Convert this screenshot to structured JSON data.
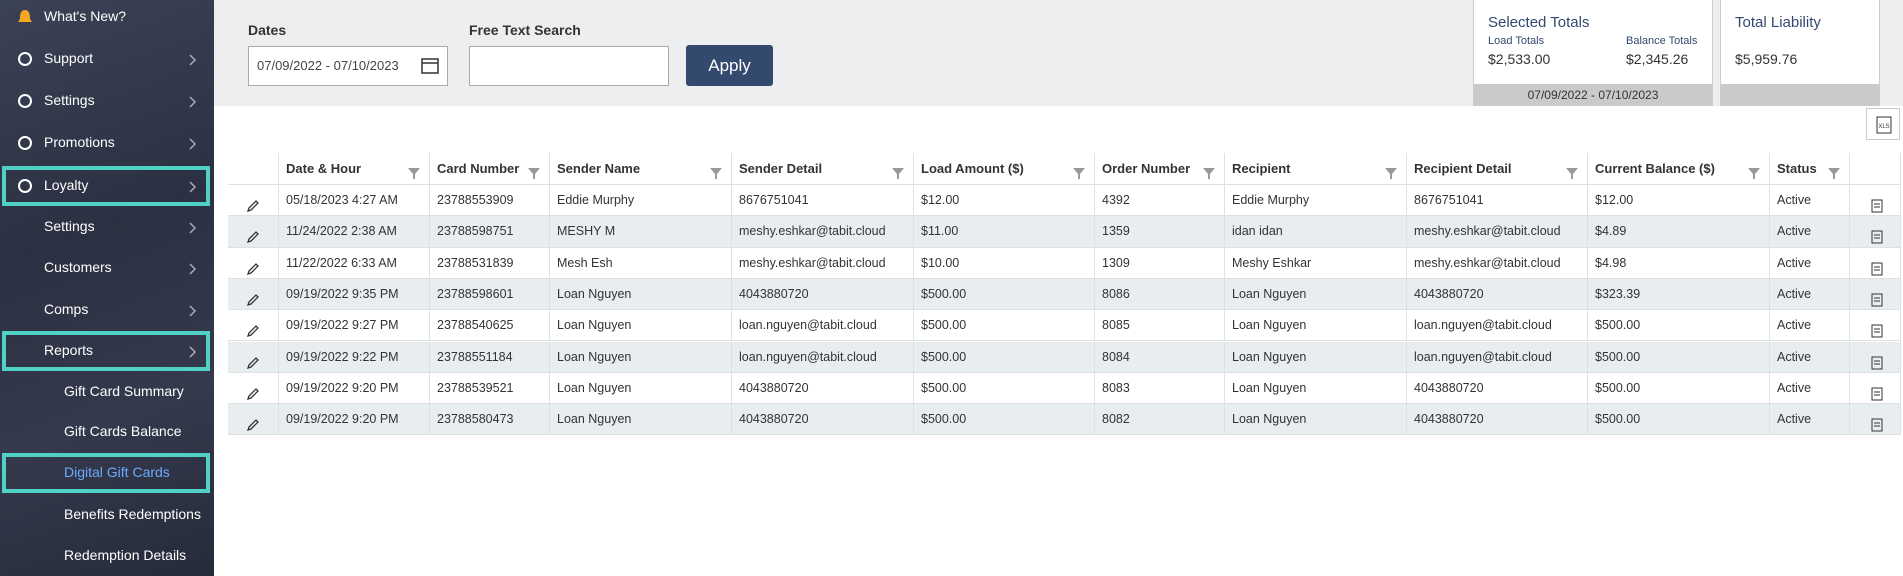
{
  "sidebar": {
    "items": [
      "What's New?",
      "Support",
      "Settings",
      "Promotions",
      "Loyalty",
      "Settings",
      "Customers",
      "Comps",
      "Reports",
      "Gift Card Summary",
      "Gift Cards Balance",
      "Digital Gift Cards",
      "Benefits Redemptions",
      "Redemption Details"
    ]
  },
  "filters": {
    "dates_label": "Dates",
    "dates_value": "07/09/2022 - 07/10/2023",
    "search_label": "Free Text Search",
    "apply": "Apply"
  },
  "totals": {
    "selected_title": "Selected Totals",
    "load_label": "Load Totals",
    "load_value": "$2,533.00",
    "balance_label": "Balance Totals",
    "balance_value": "$2,345.26",
    "range": "07/09/2022 - 07/10/2023",
    "liability_title": "Total Liability",
    "liability_value": "$5,959.76"
  },
  "table": {
    "columns": [
      "Date & Hour",
      "Card Number",
      "Sender Name",
      "Sender Detail",
      "Load Amount ($)",
      "Order Number",
      "Recipient",
      "Recipient Detail",
      "Current Balance ($)",
      "Status"
    ],
    "rows": [
      [
        "05/18/2023 4:27 AM",
        "23788553909",
        "Eddie Murphy",
        "8676751041",
        "$12.00",
        "4392",
        "Eddie Murphy",
        "8676751041",
        "$12.00",
        "Active"
      ],
      [
        "11/24/2022 2:38 AM",
        "23788598751",
        "MESHY M",
        "meshy.eshkar@tabit.cloud",
        "$11.00",
        "1359",
        "idan idan",
        "meshy.eshkar@tabit.cloud",
        "$4.89",
        "Active"
      ],
      [
        "11/22/2022 6:33 AM",
        "23788531839",
        "Mesh Esh",
        "meshy.eshkar@tabit.cloud",
        "$10.00",
        "1309",
        "Meshy Eshkar",
        "meshy.eshkar@tabit.cloud",
        "$4.98",
        "Active"
      ],
      [
        "09/19/2022 9:35 PM",
        "23788598601",
        "Loan Nguyen",
        "4043880720",
        "$500.00",
        "8086",
        "Loan Nguyen",
        "4043880720",
        "$323.39",
        "Active"
      ],
      [
        "09/19/2022 9:27 PM",
        "23788540625",
        "Loan Nguyen",
        "loan.nguyen@tabit.cloud",
        "$500.00",
        "8085",
        "Loan Nguyen",
        "loan.nguyen@tabit.cloud",
        "$500.00",
        "Active"
      ],
      [
        "09/19/2022 9:22 PM",
        "23788551184",
        "Loan Nguyen",
        "loan.nguyen@tabit.cloud",
        "$500.00",
        "8084",
        "Loan Nguyen",
        "loan.nguyen@tabit.cloud",
        "$500.00",
        "Active"
      ],
      [
        "09/19/2022 9:20 PM",
        "23788539521",
        "Loan Nguyen",
        "4043880720",
        "$500.00",
        "8083",
        "Loan Nguyen",
        "4043880720",
        "$500.00",
        "Active"
      ],
      [
        "09/19/2022 9:20 PM",
        "23788580473",
        "Loan Nguyen",
        "4043880720",
        "$500.00",
        "8082",
        "Loan Nguyen",
        "4043880720",
        "$500.00",
        "Active"
      ]
    ]
  }
}
